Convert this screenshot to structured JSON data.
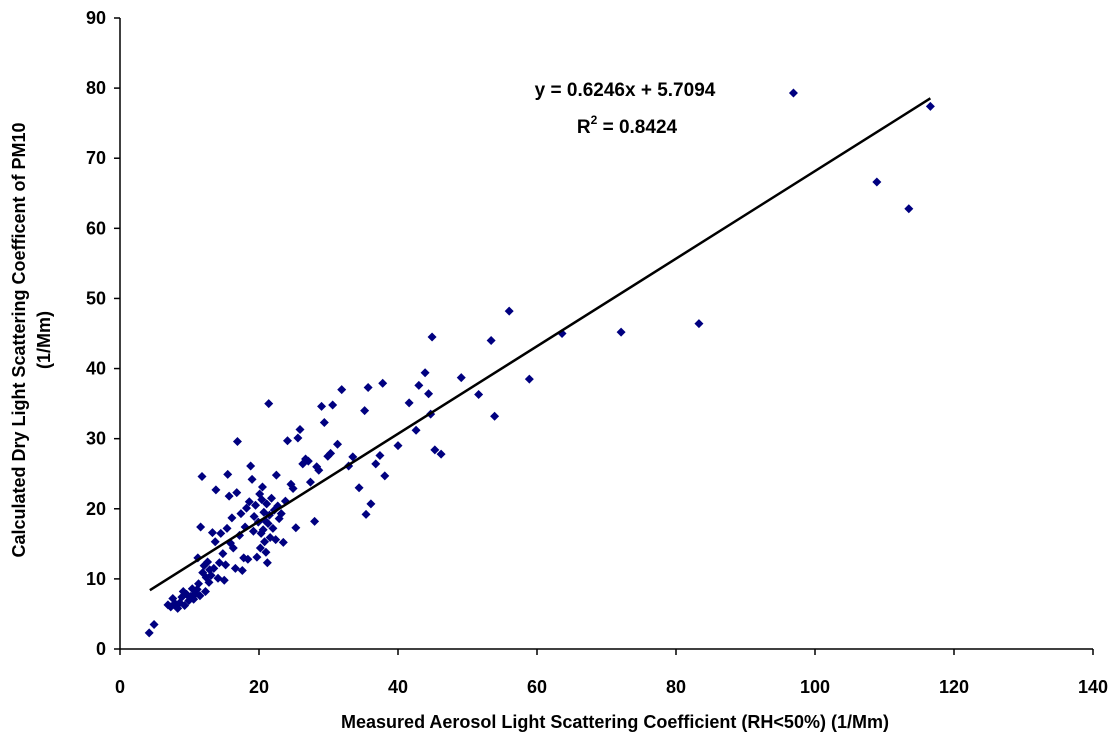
{
  "chart_data": {
    "type": "scatter",
    "title": "",
    "xlabel": "Measured Aerosol Light Scattering Coefficient  (RH<50%) (1/Mm)",
    "ylabel_line1": "Calculated Dry Light Scattering Coefficent of PM10",
    "ylabel_line2": "(1/Mm)",
    "xlim": [
      0,
      140
    ],
    "ylim": [
      0,
      90
    ],
    "xticks": [
      "0",
      "20",
      "40",
      "60",
      "80",
      "100",
      "120",
      "140"
    ],
    "yticks": [
      "0",
      "10",
      "20",
      "30",
      "40",
      "50",
      "60",
      "70",
      "80",
      "90"
    ],
    "grid": false,
    "legend": "none",
    "marker": "diamond",
    "marker_color": "#000080",
    "trendline": {
      "equation": "y = 0.6246x + 5.7094",
      "r2_prefix": "R",
      "r2_exp": "2",
      "r2_suffix": " = 0.8424",
      "slope": 0.6246,
      "intercept": 5.7094,
      "x_range": [
        4.3,
        116.6
      ],
      "color": "#000000"
    },
    "series": [
      {
        "points": [
          [
            4.2,
            2.3
          ],
          [
            4.9,
            3.5
          ],
          [
            6.9,
            6.3
          ],
          [
            7.3,
            6.0
          ],
          [
            7.6,
            7.2
          ],
          [
            7.9,
            6.5
          ],
          [
            8.3,
            5.8
          ],
          [
            8.6,
            6.6
          ],
          [
            8.9,
            7.4
          ],
          [
            9.1,
            8.2
          ],
          [
            9.3,
            6.2
          ],
          [
            9.6,
            7.8
          ],
          [
            9.9,
            6.9
          ],
          [
            10.2,
            7.5
          ],
          [
            10.4,
            8.6
          ],
          [
            10.6,
            7.1
          ],
          [
            10.9,
            7.9
          ],
          [
            11.1,
            8.5
          ],
          [
            11.3,
            9.3
          ],
          [
            11.5,
            7.6
          ],
          [
            11.2,
            13.0
          ],
          [
            11.6,
            17.4
          ],
          [
            11.8,
            24.6
          ],
          [
            11.9,
            10.9
          ],
          [
            12.1,
            11.9
          ],
          [
            12.3,
            8.2
          ],
          [
            12.4,
            10.2
          ],
          [
            12.6,
            12.4
          ],
          [
            12.8,
            9.5
          ],
          [
            12.9,
            11.3
          ],
          [
            13.1,
            10.5
          ],
          [
            13.3,
            16.6
          ],
          [
            13.5,
            11.5
          ],
          [
            13.7,
            15.3
          ],
          [
            13.8,
            22.7
          ],
          [
            14.1,
            10.1
          ],
          [
            14.3,
            12.3
          ],
          [
            14.5,
            16.5
          ],
          [
            14.8,
            13.6
          ],
          [
            15.0,
            9.8
          ],
          [
            15.2,
            12.0
          ],
          [
            15.4,
            17.2
          ],
          [
            15.5,
            24.9
          ],
          [
            15.7,
            21.8
          ],
          [
            15.9,
            15.1
          ],
          [
            16.1,
            18.7
          ],
          [
            16.3,
            14.4
          ],
          [
            16.6,
            11.5
          ],
          [
            16.8,
            22.3
          ],
          [
            16.9,
            29.6
          ],
          [
            17.2,
            16.2
          ],
          [
            17.4,
            19.3
          ],
          [
            17.6,
            11.2
          ],
          [
            17.8,
            13.0
          ],
          [
            18.0,
            17.4
          ],
          [
            18.2,
            20.1
          ],
          [
            18.4,
            12.8
          ],
          [
            18.6,
            21.0
          ],
          [
            18.8,
            26.1
          ],
          [
            19.0,
            24.2
          ],
          [
            19.2,
            16.8
          ],
          [
            19.3,
            18.9
          ],
          [
            19.5,
            20.5
          ],
          [
            19.7,
            13.1
          ],
          [
            19.9,
            18.1
          ],
          [
            20.1,
            22.1
          ],
          [
            20.2,
            14.4
          ],
          [
            20.3,
            16.5
          ],
          [
            20.4,
            21.3
          ],
          [
            20.5,
            23.1
          ],
          [
            20.6,
            17.0
          ],
          [
            20.7,
            19.5
          ],
          [
            20.8,
            15.3
          ],
          [
            20.9,
            18.3
          ],
          [
            21.0,
            13.8
          ],
          [
            21.1,
            20.7
          ],
          [
            21.2,
            12.3
          ],
          [
            21.3,
            17.9
          ],
          [
            21.4,
            35.0
          ],
          [
            21.5,
            19.1
          ],
          [
            21.6,
            15.9
          ],
          [
            21.8,
            21.5
          ],
          [
            22.0,
            17.2
          ],
          [
            22.2,
            19.8
          ],
          [
            22.4,
            15.6
          ],
          [
            22.5,
            24.8
          ],
          [
            22.7,
            20.4
          ],
          [
            22.9,
            18.6
          ],
          [
            23.2,
            19.3
          ],
          [
            23.5,
            15.2
          ],
          [
            23.8,
            21.1
          ],
          [
            24.1,
            29.7
          ],
          [
            24.6,
            23.5
          ],
          [
            24.9,
            22.9
          ],
          [
            25.3,
            17.3
          ],
          [
            25.6,
            30.1
          ],
          [
            25.9,
            31.3
          ],
          [
            26.3,
            26.4
          ],
          [
            26.7,
            27.1
          ],
          [
            27.1,
            26.8
          ],
          [
            27.4,
            23.8
          ],
          [
            28.0,
            18.2
          ],
          [
            28.3,
            26.0
          ],
          [
            28.6,
            25.5
          ],
          [
            29.0,
            34.6
          ],
          [
            29.4,
            32.3
          ],
          [
            29.9,
            27.5
          ],
          [
            30.3,
            27.9
          ],
          [
            30.6,
            34.8
          ],
          [
            31.3,
            29.2
          ],
          [
            31.9,
            37.0
          ],
          [
            32.9,
            26.1
          ],
          [
            33.5,
            27.4
          ],
          [
            34.4,
            23.0
          ],
          [
            35.2,
            34.0
          ],
          [
            35.4,
            19.2
          ],
          [
            35.7,
            37.3
          ],
          [
            36.1,
            20.7
          ],
          [
            36.8,
            26.4
          ],
          [
            37.4,
            27.6
          ],
          [
            37.8,
            37.9
          ],
          [
            38.1,
            24.7
          ],
          [
            40.0,
            29.0
          ],
          [
            41.6,
            35.1
          ],
          [
            42.6,
            31.2
          ],
          [
            43.0,
            37.6
          ],
          [
            43.9,
            39.4
          ],
          [
            44.4,
            36.4
          ],
          [
            44.7,
            33.5
          ],
          [
            44.9,
            44.5
          ],
          [
            45.3,
            28.4
          ],
          [
            46.2,
            27.8
          ],
          [
            49.1,
            38.7
          ],
          [
            51.6,
            36.3
          ],
          [
            53.4,
            44.0
          ],
          [
            53.9,
            33.2
          ],
          [
            56.0,
            48.2
          ],
          [
            58.9,
            38.5
          ],
          [
            63.6,
            45.0
          ],
          [
            72.1,
            45.2
          ],
          [
            83.3,
            46.4
          ],
          [
            96.9,
            79.3
          ],
          [
            108.9,
            66.6
          ],
          [
            113.5,
            62.8
          ],
          [
            116.6,
            77.4
          ]
        ]
      }
    ]
  }
}
